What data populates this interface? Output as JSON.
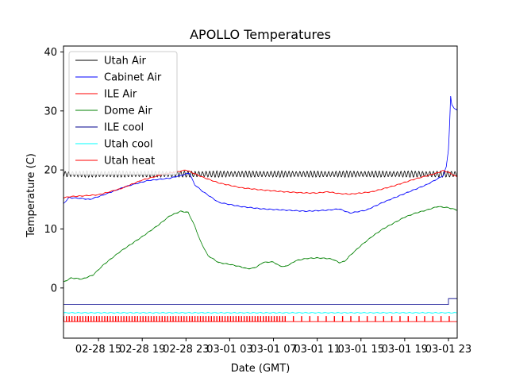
{
  "chart_data": {
    "type": "line",
    "title": "APOLLO Temperatures",
    "xlabel": "Date (GMT)",
    "ylabel": "Temperature (C)",
    "xlim": [
      11.8,
      47.8
    ],
    "ylim": [
      -8.5,
      41
    ],
    "x_units": "hours since 02-28 00:00 GMT",
    "x_ticks": [
      {
        "x": 15,
        "label": "02-28 15"
      },
      {
        "x": 19,
        "label": "02-28 19"
      },
      {
        "x": 23,
        "label": "02-28 23"
      },
      {
        "x": 27,
        "label": "03-01 03"
      },
      {
        "x": 31,
        "label": "03-01 07"
      },
      {
        "x": 35,
        "label": "03-01 11"
      },
      {
        "x": 39,
        "label": "03-01 15"
      },
      {
        "x": 43,
        "label": "03-01 19"
      },
      {
        "x": 47,
        "label": "03-01 23"
      }
    ],
    "y_ticks": [
      0,
      10,
      20,
      30,
      40
    ],
    "grid": false,
    "legend": "top-left",
    "series": [
      {
        "name": "Utah Air",
        "color": "#000000",
        "style": "oscillating",
        "x": [
          11.8,
          47.8
        ],
        "y": [
          19.3,
          19.3
        ],
        "amplitude": 0.45,
        "period_h": 0.33
      },
      {
        "name": "Cabinet Air",
        "color": "#0000ff",
        "style": "line",
        "x": [
          11.8,
          12.3,
          13.3,
          14.2,
          15.5,
          17.5,
          19.5,
          21.5,
          22.8,
          23.3,
          23.8,
          24.5,
          26,
          28,
          30,
          32,
          34,
          36,
          37,
          38,
          39.5,
          41,
          43,
          45,
          46,
          46.5,
          46.8,
          47.0,
          47.1,
          47.2,
          47.3,
          47.5,
          47.8
        ],
        "y": [
          14.3,
          15.3,
          15.2,
          15.0,
          15.8,
          17.2,
          18.2,
          18.6,
          19.2,
          19.5,
          17.5,
          16.4,
          14.5,
          13.8,
          13.4,
          13.2,
          13.0,
          13.2,
          13.4,
          12.7,
          13.2,
          14.5,
          16.0,
          17.5,
          18.5,
          19.0,
          20.5,
          23.5,
          27.5,
          32.5,
          31.0,
          30.5,
          30.2
        ]
      },
      {
        "name": "ILE Air",
        "color": "#ff0000",
        "style": "line",
        "x": [
          11.8,
          12.5,
          13.5,
          15,
          17,
          19,
          21,
          22.5,
          23.0,
          23.5,
          24.5,
          26,
          28,
          30,
          32,
          34,
          35,
          36,
          37,
          38,
          40,
          42,
          44,
          46,
          46.5,
          47.0,
          47.8
        ],
        "y": [
          15.3,
          15.5,
          15.6,
          15.8,
          16.8,
          18.3,
          19.3,
          19.8,
          20.0,
          19.6,
          18.8,
          17.8,
          17.0,
          16.6,
          16.3,
          16.1,
          16.1,
          16.3,
          16.0,
          15.9,
          16.3,
          17.3,
          18.5,
          19.5,
          19.9,
          19.6,
          18.8
        ]
      },
      {
        "name": "Dome Air",
        "color": "#008000",
        "style": "line",
        "x": [
          11.8,
          12.5,
          13.5,
          14.5,
          15.5,
          17,
          19,
          20.5,
          21.5,
          22.5,
          23.2,
          23.8,
          24.3,
          25,
          26,
          27,
          28,
          28.5,
          29,
          29.5,
          30,
          30.5,
          31,
          31.5,
          32,
          32.5,
          33,
          33.5,
          34,
          35,
          36,
          36.5,
          37,
          37.5,
          38,
          39,
          40,
          41,
          42,
          43,
          44,
          45,
          46,
          47,
          47.8
        ],
        "y": [
          1.0,
          1.7,
          1.5,
          2.2,
          4.0,
          6.2,
          8.7,
          10.7,
          12.2,
          13.0,
          12.8,
          10.5,
          8.0,
          5.5,
          4.3,
          4.0,
          3.6,
          3.3,
          3.3,
          3.6,
          4.3,
          4.4,
          4.4,
          3.8,
          3.6,
          4.0,
          4.6,
          4.8,
          5.0,
          5.1,
          5.0,
          4.8,
          4.3,
          4.5,
          5.5,
          7.2,
          8.7,
          10.0,
          11.0,
          12.0,
          12.7,
          13.2,
          13.8,
          13.6,
          13.2
        ]
      },
      {
        "name": "ILE cool",
        "color": "#00008b",
        "style": "step",
        "x": [
          11.8,
          47.0,
          47.0,
          47.8
        ],
        "y": [
          -2.8,
          -2.8,
          -1.8,
          -1.8
        ]
      },
      {
        "name": "Utah cool",
        "color": "#00ffff",
        "style": "line",
        "x": [
          11.8,
          47.8
        ],
        "y": [
          -4.2,
          -4.2
        ]
      },
      {
        "name": "Utah heat",
        "color": "#ff0000",
        "style": "pulses",
        "base": -5.7,
        "high": -4.8,
        "x_start": 11.8,
        "x_end": 47.8,
        "dense_period_h": 0.25,
        "dense_until": 32,
        "sparse_period_h": 0.75
      }
    ]
  }
}
